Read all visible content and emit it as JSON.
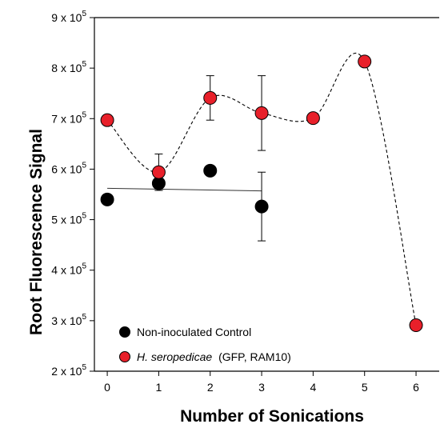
{
  "chart_data": {
    "type": "scatter",
    "title": "",
    "xlabel": "Number of Sonications",
    "ylabel": "Root Fluorescence Signal",
    "xlim": [
      -0.25,
      6.45
    ],
    "ylim": [
      200000,
      900000
    ],
    "x_ticks": [
      0,
      1,
      2,
      3,
      4,
      5,
      6
    ],
    "x_tick_labels": [
      "0",
      "1",
      "2",
      "3",
      "4",
      "5",
      "6"
    ],
    "y_ticks": [
      200000,
      300000,
      400000,
      500000,
      600000,
      700000,
      800000,
      900000
    ],
    "y_tick_mantissas": [
      "2",
      "3",
      "4",
      "5",
      "6",
      "7",
      "8",
      "9"
    ],
    "y_tick_base": "x 10",
    "y_tick_exponent": "5",
    "grid": false,
    "legend_position": "bottom-left",
    "series": [
      {
        "legend_label": "Non-inoculated Control",
        "color": "#000000",
        "marker": "circle",
        "x": [
          0,
          1,
          2,
          3
        ],
        "y": [
          540000,
          572000,
          597000,
          526000
        ],
        "error": [
          null,
          14000,
          null,
          68000
        ],
        "trendline": {
          "style": "solid",
          "x": [
            0,
            3
          ],
          "y": [
            562000,
            557000
          ]
        }
      },
      {
        "legend_label_italic": "H. seropedicae",
        "legend_label_rest": "(GFP, RAM10)",
        "color": "#e8202a",
        "marker": "circle",
        "x": [
          0,
          1,
          2,
          3,
          4,
          5,
          6
        ],
        "y": [
          697000,
          594000,
          741000,
          711000,
          701000,
          813000,
          291000
        ],
        "error": [
          null,
          36000,
          44000,
          74000,
          null,
          null,
          null
        ],
        "trendline": {
          "style": "dashed-smooth"
        }
      }
    ]
  }
}
